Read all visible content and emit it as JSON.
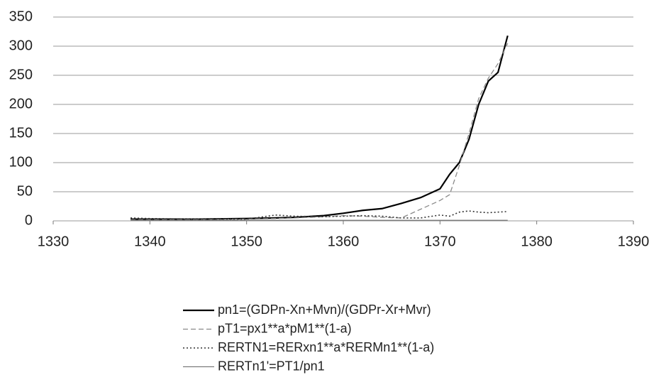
{
  "chart_data": {
    "type": "line",
    "x": [
      1338,
      1340,
      1345,
      1350,
      1353,
      1355,
      1358,
      1360,
      1362,
      1364,
      1366,
      1368,
      1370,
      1371,
      1372,
      1373,
      1374,
      1375,
      1376,
      1377
    ],
    "series": [
      {
        "name": "pn1=(GDPn-Xn+Mvn)/(GDPr-Xr+Mvr)",
        "color": "#000000",
        "dash": "solid",
        "values": [
          3,
          3,
          3,
          4,
          5,
          6,
          9,
          13,
          18,
          21,
          30,
          40,
          55,
          80,
          100,
          140,
          200,
          240,
          255,
          318
        ]
      },
      {
        "name": "pT1=px1**a*pM1**(1-a)",
        "color": "#8a8a8a",
        "dash": "dashed",
        "values": [
          2,
          2,
          2,
          3,
          4,
          5,
          7,
          9,
          8,
          6,
          5,
          20,
          35,
          45,
          95,
          150,
          210,
          245,
          270,
          305
        ]
      },
      {
        "name": "RERTN1=RERxn1**a*RERMn1**(1-a)",
        "color": "#333333",
        "dash": "dotted",
        "values": [
          5,
          4,
          3,
          3,
          10,
          8,
          7,
          8,
          9,
          8,
          5,
          5,
          10,
          8,
          15,
          17,
          15,
          14,
          15,
          16
        ]
      },
      {
        "name": "RERTn1'=PT1/pn1",
        "color": "#666666",
        "dash": "thin",
        "values": [
          1,
          1,
          1,
          1,
          1,
          1,
          1,
          1,
          1,
          1,
          1,
          1,
          1,
          1,
          1,
          1,
          1,
          1,
          1,
          1
        ]
      }
    ],
    "xlim": [
      1330,
      1390
    ],
    "xticks": [
      1330,
      1340,
      1350,
      1360,
      1370,
      1380,
      1390
    ],
    "ylim": [
      0,
      350
    ],
    "yticks": [
      0,
      50,
      100,
      150,
      200,
      250,
      300,
      350
    ],
    "grid": true,
    "legend": "bottom"
  }
}
